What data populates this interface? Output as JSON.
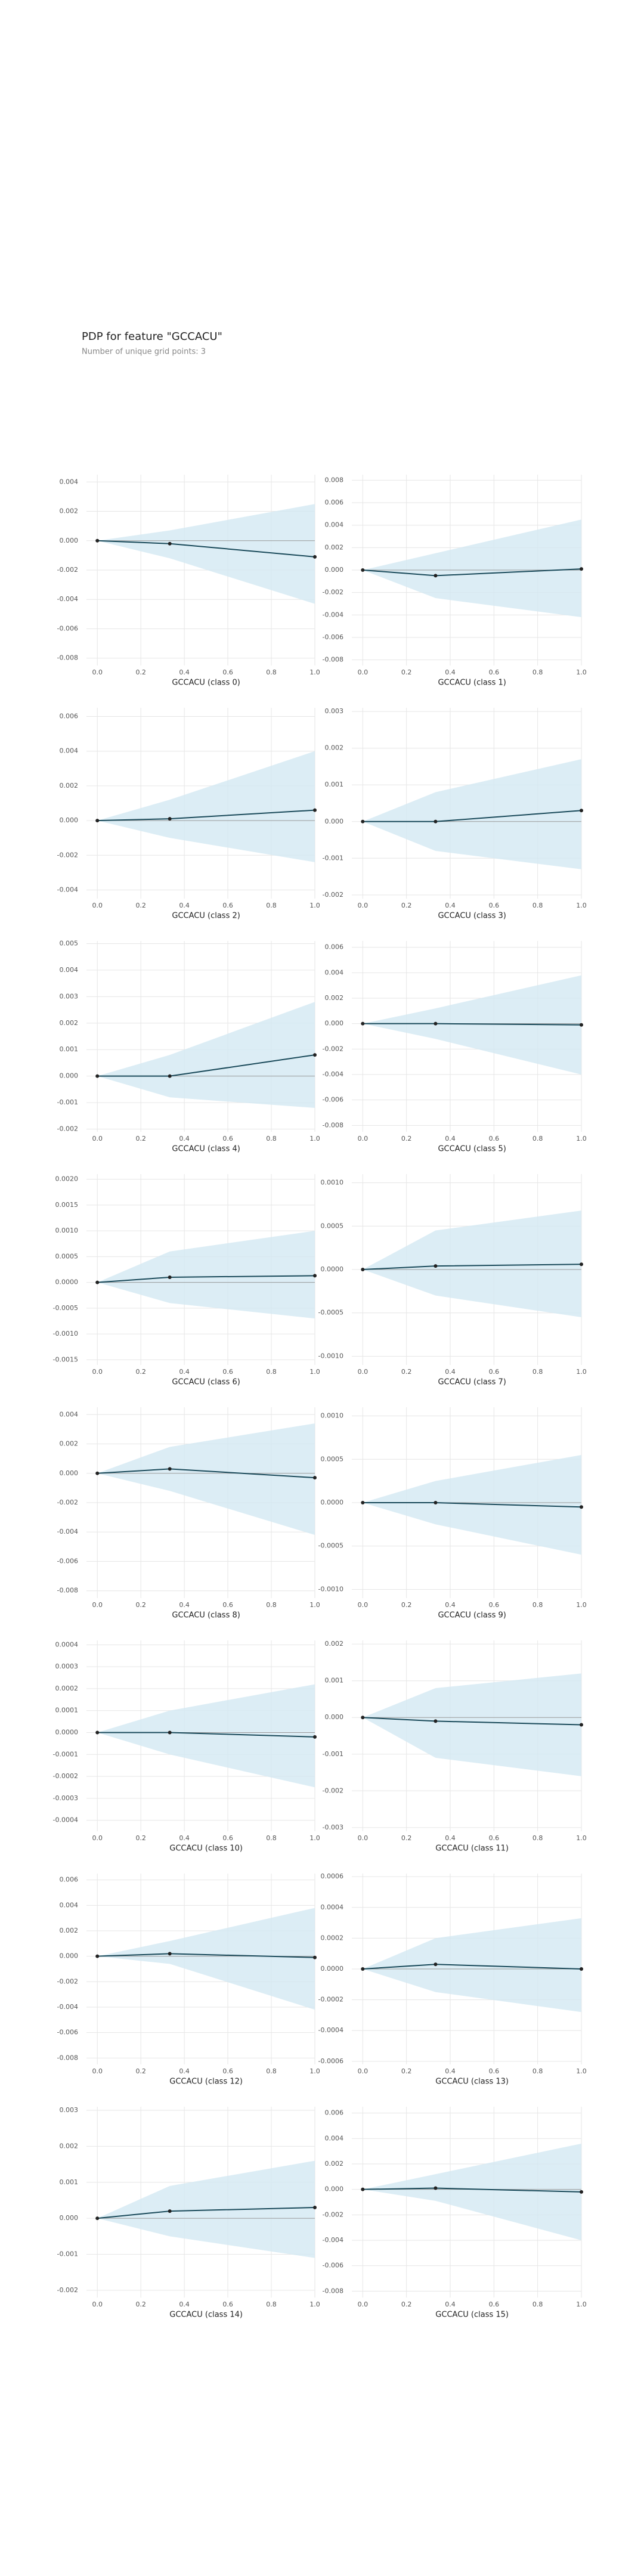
{
  "title": "PDP for feature \"GCCACU\"",
  "subtitle": "Number of unique grid points: 3",
  "chart_data": [
    {
      "type": "pdp",
      "xlabel": "GCCACU (class 0)",
      "x": [
        0,
        0.333,
        1
      ],
      "values": [
        0,
        -0.0002,
        -0.0011
      ],
      "upper": [
        0,
        0.0007,
        0.0025
      ],
      "lower": [
        0,
        -0.0012,
        -0.0043
      ],
      "ylim": [
        -0.0085,
        0.0045
      ],
      "yticks": [
        0.004,
        0.002,
        {
          "value": 0,
          "label": "0.000"
        },
        -0.002,
        -0.004,
        -0.006,
        -0.008
      ],
      "xlim": [
        -0.05,
        1.0
      ],
      "xticks": [
        {
          "value": 0,
          "label": "0.0"
        },
        0.2,
        0.4,
        0.6,
        0.8,
        {
          "value": 1,
          "label": "1.0"
        }
      ],
      "color": "#1a4a5a",
      "band_color": "#d3e9f2",
      "grid": true
    },
    {
      "type": "pdp",
      "xlabel": "GCCACU (class 1)",
      "x": [
        0,
        0.333,
        1
      ],
      "values": [
        0,
        -0.0005,
        0.0001
      ],
      "upper": [
        0,
        0.0015,
        0.0045
      ],
      "lower": [
        0,
        -0.0025,
        -0.0042
      ],
      "ylim": [
        -0.0085,
        0.0085
      ],
      "yticks": [
        0.008,
        0.006,
        0.004,
        0.002,
        {
          "value": 0,
          "label": "0.000"
        },
        -0.002,
        -0.004,
        -0.006,
        -0.008
      ],
      "xlim": [
        -0.05,
        1.0
      ],
      "xticks": [
        {
          "value": 0,
          "label": "0.0"
        },
        0.2,
        0.4,
        0.6,
        0.8,
        {
          "value": 1,
          "label": "1.0"
        }
      ],
      "color": "#1a4a5a",
      "band_color": "#d3e9f2",
      "grid": true
    },
    {
      "type": "pdp",
      "xlabel": "GCCACU (class 2)",
      "x": [
        0,
        0.333,
        1
      ],
      "values": [
        0,
        0.0001,
        0.0006
      ],
      "upper": [
        0,
        0.0012,
        0.004
      ],
      "lower": [
        0,
        -0.001,
        -0.0024
      ],
      "ylim": [
        -0.0045,
        0.0065
      ],
      "yticks": [
        0.006,
        0.004,
        0.002,
        {
          "value": 0,
          "label": "0.000"
        },
        -0.002,
        -0.004
      ],
      "xlim": [
        -0.05,
        1.0
      ],
      "xticks": [
        {
          "value": 0,
          "label": "0.0"
        },
        0.2,
        0.4,
        0.6,
        0.8,
        {
          "value": 1,
          "label": "1.0"
        }
      ],
      "color": "#1a4a5a",
      "band_color": "#d3e9f2",
      "grid": true
    },
    {
      "type": "pdp",
      "xlabel": "GCCACU (class 3)",
      "x": [
        0,
        0.333,
        1
      ],
      "values": [
        0,
        0,
        0.0003
      ],
      "upper": [
        0,
        0.0008,
        0.0017
      ],
      "lower": [
        0,
        -0.0008,
        -0.0013
      ],
      "ylim": [
        -0.0021,
        0.0031
      ],
      "yticks": [
        0.003,
        0.002,
        0.001,
        {
          "value": 0,
          "label": "0.000"
        },
        -0.001,
        -0.002
      ],
      "xlim": [
        -0.05,
        1.0
      ],
      "xticks": [
        {
          "value": 0,
          "label": "0.0"
        },
        0.2,
        0.4,
        0.6,
        0.8,
        {
          "value": 1,
          "label": "1.0"
        }
      ],
      "color": "#1a4a5a",
      "band_color": "#d3e9f2",
      "grid": true
    },
    {
      "type": "pdp",
      "xlabel": "GCCACU (class 4)",
      "x": [
        0,
        0.333,
        1
      ],
      "values": [
        0,
        0,
        0.0008
      ],
      "upper": [
        0,
        0.0008,
        0.0028
      ],
      "lower": [
        0,
        -0.0008,
        -0.0012
      ],
      "ylim": [
        -0.0021,
        0.0051
      ],
      "yticks": [
        0.005,
        0.004,
        0.003,
        0.002,
        0.001,
        {
          "value": 0,
          "label": "0.000"
        },
        -0.001,
        -0.002
      ],
      "xlim": [
        -0.05,
        1.0
      ],
      "xticks": [
        {
          "value": 0,
          "label": "0.0"
        },
        0.2,
        0.4,
        0.6,
        0.8,
        {
          "value": 1,
          "label": "1.0"
        }
      ],
      "color": "#1a4a5a",
      "band_color": "#d3e9f2",
      "grid": true
    },
    {
      "type": "pdp",
      "xlabel": "GCCACU (class 5)",
      "x": [
        0,
        0.333,
        1
      ],
      "values": [
        0,
        0,
        -0.0001
      ],
      "upper": [
        0,
        0.0012,
        0.0038
      ],
      "lower": [
        0,
        -0.0012,
        -0.004
      ],
      "ylim": [
        -0.0085,
        0.0065
      ],
      "yticks": [
        0.006,
        0.004,
        0.002,
        {
          "value": 0,
          "label": "0.000"
        },
        -0.002,
        -0.004,
        -0.006,
        -0.008
      ],
      "xlim": [
        -0.05,
        1.0
      ],
      "xticks": [
        {
          "value": 0,
          "label": "0.0"
        },
        0.2,
        0.4,
        0.6,
        0.8,
        {
          "value": 1,
          "label": "1.0"
        }
      ],
      "color": "#1a4a5a",
      "band_color": "#d3e9f2",
      "grid": true
    },
    {
      "type": "pdp",
      "xlabel": "GCCACU (class 6)",
      "x": [
        0,
        0.333,
        1
      ],
      "values": [
        0,
        0.0001,
        0.00013
      ],
      "upper": [
        0,
        0.0006,
        0.001
      ],
      "lower": [
        0,
        -0.0004,
        -0.0007
      ],
      "ylim": [
        -0.0016,
        0.0021
      ],
      "yticks": [
        {
          "value": 0.002,
          "label": "0.0020"
        },
        {
          "value": 0.0015,
          "label": "0.0015"
        },
        {
          "value": 0.001,
          "label": "0.0010"
        },
        0.0005,
        {
          "value": 0,
          "label": "0.0000"
        },
        -0.0005,
        {
          "value": -0.001,
          "label": "-0.0010"
        },
        -0.0015
      ],
      "xlim": [
        -0.05,
        1.0
      ],
      "xticks": [
        {
          "value": 0,
          "label": "0.0"
        },
        0.2,
        0.4,
        0.6,
        0.8,
        {
          "value": 1,
          "label": "1.0"
        }
      ],
      "color": "#1a4a5a",
      "band_color": "#d3e9f2",
      "grid": true
    },
    {
      "type": "pdp",
      "xlabel": "GCCACU (class 7)",
      "x": [
        0,
        0.333,
        1
      ],
      "values": [
        0,
        4e-05,
        6e-05
      ],
      "upper": [
        0,
        0.00045,
        0.00068
      ],
      "lower": [
        0,
        -0.0003,
        -0.00055
      ],
      "ylim": [
        -0.0011,
        0.0011
      ],
      "yticks": [
        {
          "value": 0.001,
          "label": "0.0010"
        },
        0.0005,
        {
          "value": 0,
          "label": "0.0000"
        },
        -0.0005,
        {
          "value": -0.001,
          "label": "-0.0010"
        }
      ],
      "xlim": [
        -0.05,
        1.0
      ],
      "xticks": [
        {
          "value": 0,
          "label": "0.0"
        },
        0.2,
        0.4,
        0.6,
        0.8,
        {
          "value": 1,
          "label": "1.0"
        }
      ],
      "color": "#1a4a5a",
      "band_color": "#d3e9f2",
      "grid": true
    },
    {
      "type": "pdp",
      "xlabel": "GCCACU (class 8)",
      "x": [
        0,
        0.333,
        1
      ],
      "values": [
        0,
        0.0003,
        -0.0003
      ],
      "upper": [
        0,
        0.0018,
        0.0034
      ],
      "lower": [
        0,
        -0.0012,
        -0.0042
      ],
      "ylim": [
        -0.0085,
        0.0045
      ],
      "yticks": [
        0.004,
        0.002,
        {
          "value": 0,
          "label": "0.000"
        },
        -0.002,
        -0.004,
        -0.006,
        -0.008
      ],
      "xlim": [
        -0.05,
        1.0
      ],
      "xticks": [
        {
          "value": 0,
          "label": "0.0"
        },
        0.2,
        0.4,
        0.6,
        0.8,
        {
          "value": 1,
          "label": "1.0"
        }
      ],
      "color": "#1a4a5a",
      "band_color": "#d3e9f2",
      "grid": true
    },
    {
      "type": "pdp",
      "xlabel": "GCCACU (class 9)",
      "x": [
        0,
        0.333,
        1
      ],
      "values": [
        0,
        0,
        -5e-05
      ],
      "upper": [
        0,
        0.00025,
        0.00055
      ],
      "lower": [
        0,
        -0.00025,
        -0.0006
      ],
      "ylim": [
        -0.0011,
        0.0011
      ],
      "yticks": [
        {
          "value": 0.001,
          "label": "0.0010"
        },
        0.0005,
        {
          "value": 0,
          "label": "0.0000"
        },
        -0.0005,
        {
          "value": -0.001,
          "label": "-0.0010"
        }
      ],
      "xlim": [
        -0.05,
        1.0
      ],
      "xticks": [
        {
          "value": 0,
          "label": "0.0"
        },
        0.2,
        0.4,
        0.6,
        0.8,
        {
          "value": 1,
          "label": "1.0"
        }
      ],
      "color": "#1a4a5a",
      "band_color": "#d3e9f2",
      "grid": true
    },
    {
      "type": "pdp",
      "xlabel": "GCCACU (class 10)",
      "x": [
        0,
        0.333,
        1
      ],
      "values": [
        0,
        0,
        -2e-05
      ],
      "upper": [
        0,
        0.0001,
        0.00022
      ],
      "lower": [
        0,
        -0.0001,
        -0.00025
      ],
      "ylim": [
        -0.00045,
        0.00042
      ],
      "yticks": [
        0.0004,
        0.0003,
        0.0002,
        0.0001,
        {
          "value": 0,
          "label": "0.0000"
        },
        -0.0001,
        -0.0002,
        -0.0003,
        -0.0004
      ],
      "xlim": [
        -0.05,
        1.0
      ],
      "xticks": [
        {
          "value": 0,
          "label": "0.0"
        },
        0.2,
        0.4,
        0.6,
        0.8,
        {
          "value": 1,
          "label": "1.0"
        }
      ],
      "color": "#1a4a5a",
      "band_color": "#d3e9f2",
      "grid": true
    },
    {
      "type": "pdp",
      "xlabel": "GCCACU (class 11)",
      "x": [
        0,
        0.333,
        1
      ],
      "values": [
        0,
        -0.0001,
        -0.0002
      ],
      "upper": [
        0,
        0.0008,
        0.0012
      ],
      "lower": [
        0,
        -0.0011,
        -0.0016
      ],
      "ylim": [
        -0.0031,
        0.0021
      ],
      "yticks": [
        0.002,
        0.001,
        {
          "value": 0,
          "label": "0.000"
        },
        -0.001,
        -0.002,
        -0.003
      ],
      "xlim": [
        -0.05,
        1.0
      ],
      "xticks": [
        {
          "value": 0,
          "label": "0.0"
        },
        0.2,
        0.4,
        0.6,
        0.8,
        {
          "value": 1,
          "label": "1.0"
        }
      ],
      "color": "#1a4a5a",
      "band_color": "#d3e9f2",
      "grid": true
    },
    {
      "type": "pdp",
      "xlabel": "GCCACU (class 12)",
      "x": [
        0,
        0.333,
        1
      ],
      "values": [
        0,
        0.0002,
        -0.0001
      ],
      "upper": [
        0,
        0.0012,
        0.0038
      ],
      "lower": [
        0,
        -0.0006,
        -0.0042
      ],
      "ylim": [
        -0.0085,
        0.0065
      ],
      "yticks": [
        0.006,
        0.004,
        0.002,
        {
          "value": 0,
          "label": "0.000"
        },
        -0.002,
        -0.004,
        -0.006,
        -0.008
      ],
      "xlim": [
        -0.05,
        1.0
      ],
      "xticks": [
        {
          "value": 0,
          "label": "0.0"
        },
        0.2,
        0.4,
        0.6,
        0.8,
        {
          "value": 1,
          "label": "1.0"
        }
      ],
      "color": "#1a4a5a",
      "band_color": "#d3e9f2",
      "grid": true
    },
    {
      "type": "pdp",
      "xlabel": "GCCACU (class 13)",
      "x": [
        0,
        0.333,
        1
      ],
      "values": [
        0,
        3e-05,
        0
      ],
      "upper": [
        0,
        0.0002,
        0.00033
      ],
      "lower": [
        0,
        -0.00015,
        -0.00028
      ],
      "ylim": [
        -0.00062,
        0.00062
      ],
      "yticks": [
        0.0006,
        0.0004,
        0.0002,
        {
          "value": 0,
          "label": "0.0000"
        },
        -0.0002,
        -0.0004,
        -0.0006
      ],
      "xlim": [
        -0.05,
        1.0
      ],
      "xticks": [
        {
          "value": 0,
          "label": "0.0"
        },
        0.2,
        0.4,
        0.6,
        0.8,
        {
          "value": 1,
          "label": "1.0"
        }
      ],
      "color": "#1a4a5a",
      "band_color": "#d3e9f2",
      "grid": true
    },
    {
      "type": "pdp",
      "xlabel": "GCCACU (class 14)",
      "x": [
        0,
        0.333,
        1
      ],
      "values": [
        0,
        0.0002,
        0.0003
      ],
      "upper": [
        0,
        0.0009,
        0.0016
      ],
      "lower": [
        0,
        -0.0005,
        -0.0011
      ],
      "ylim": [
        -0.0022,
        0.0031
      ],
      "yticks": [
        0.003,
        0.002,
        0.001,
        {
          "value": 0,
          "label": "0.000"
        },
        -0.001,
        -0.002
      ],
      "xlim": [
        -0.05,
        1.0
      ],
      "xticks": [
        {
          "value": 0,
          "label": "0.0"
        },
        0.2,
        0.4,
        0.6,
        0.8,
        {
          "value": 1,
          "label": "1.0"
        }
      ],
      "color": "#1a4a5a",
      "band_color": "#d3e9f2",
      "grid": true
    },
    {
      "type": "pdp",
      "xlabel": "GCCACU (class 15)",
      "x": [
        0,
        0.333,
        1
      ],
      "values": [
        0,
        0.0001,
        -0.0002
      ],
      "upper": [
        0,
        0.0012,
        0.0036
      ],
      "lower": [
        0,
        -0.0009,
        -0.004
      ],
      "ylim": [
        -0.0085,
        0.0065
      ],
      "yticks": [
        0.006,
        0.004,
        0.002,
        {
          "value": 0,
          "label": "0.000"
        },
        -0.002,
        -0.004,
        -0.006,
        -0.008
      ],
      "xlim": [
        -0.05,
        1.0
      ],
      "xticks": [
        {
          "value": 0,
          "label": "0.0"
        },
        0.2,
        0.4,
        0.6,
        0.8,
        {
          "value": 1,
          "label": "1.0"
        }
      ],
      "color": "#1a4a5a",
      "band_color": "#d3e9f2",
      "grid": true
    }
  ]
}
